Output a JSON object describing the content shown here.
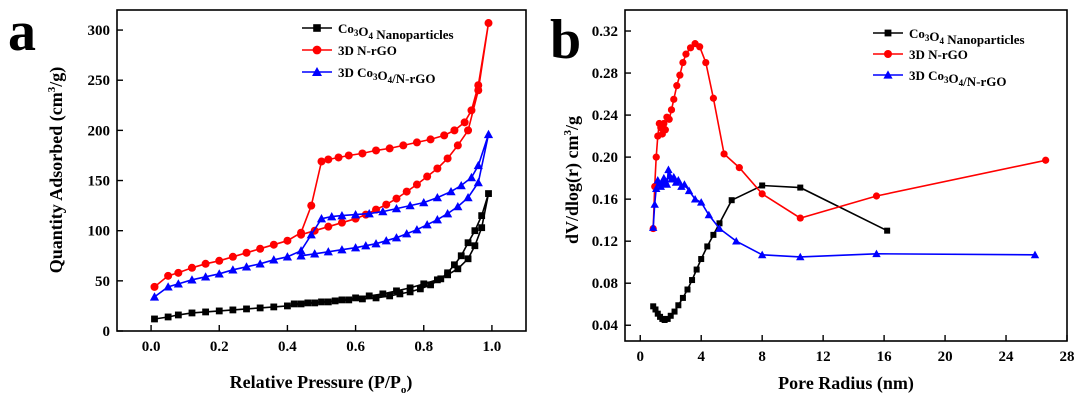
{
  "figure": {
    "panels": [
      "a",
      "b"
    ]
  },
  "chart_data": [
    {
      "panel": "a",
      "type": "line",
      "xlabel": "Relative Pressure (P/P₀)",
      "ylabel": "Quantity Adsorbed (cm³/g)",
      "xlim": [
        -0.1,
        1.1
      ],
      "ylim": [
        0,
        320
      ],
      "xticks": [
        0.0,
        0.2,
        0.4,
        0.6,
        0.8,
        1.0
      ],
      "xtick_labels": [
        "0.0",
        "0.2",
        "0.4",
        "0.6",
        "0.8",
        "1.0"
      ],
      "yticks": [
        0,
        50,
        100,
        150,
        200,
        250,
        300
      ],
      "ytick_labels": [
        "0",
        "50",
        "100",
        "150",
        "200",
        "250",
        "300"
      ],
      "legend_position": "top-right",
      "series": [
        {
          "name": "Co₃O₄ Nanoparticles",
          "color": "#000000",
          "marker": "square",
          "x": [
            0.01,
            0.05,
            0.08,
            0.12,
            0.16,
            0.2,
            0.24,
            0.28,
            0.32,
            0.36,
            0.4,
            0.44,
            0.48,
            0.52,
            0.56,
            0.6,
            0.64,
            0.68,
            0.72,
            0.76,
            0.8,
            0.84,
            0.87,
            0.9,
            0.93,
            0.95,
            0.97,
            0.99,
            0.97,
            0.95,
            0.93,
            0.91,
            0.89,
            0.87,
            0.85,
            0.82,
            0.79,
            0.76,
            0.73,
            0.7,
            0.66,
            0.62,
            0.58,
            0.54,
            0.5,
            0.46,
            0.42
          ],
          "y": [
            12,
            14,
            16,
            18,
            19,
            20,
            21,
            22,
            23,
            24,
            25,
            27,
            28,
            29,
            31,
            33,
            35,
            37,
            40,
            43,
            47,
            51,
            56,
            62,
            72,
            85,
            103,
            137,
            115,
            100,
            88,
            75,
            66,
            58,
            52,
            46,
            42,
            39,
            37,
            35,
            33,
            32,
            31,
            30,
            29,
            28,
            27
          ]
        },
        {
          "name": "3D N-rGO",
          "color": "#ff0000",
          "marker": "circle",
          "x": [
            0.01,
            0.05,
            0.08,
            0.12,
            0.16,
            0.2,
            0.24,
            0.28,
            0.32,
            0.36,
            0.4,
            0.44,
            0.47,
            0.5,
            0.52,
            0.55,
            0.58,
            0.62,
            0.66,
            0.7,
            0.74,
            0.78,
            0.82,
            0.86,
            0.89,
            0.92,
            0.94,
            0.96,
            0.99,
            0.96,
            0.93,
            0.9,
            0.87,
            0.84,
            0.81,
            0.78,
            0.75,
            0.72,
            0.69,
            0.66,
            0.63,
            0.6,
            0.56,
            0.52,
            0.48,
            0.44
          ],
          "y": [
            44,
            55,
            58,
            63,
            67,
            70,
            74,
            78,
            82,
            86,
            90,
            98,
            125,
            169,
            171,
            173,
            175,
            177,
            180,
            182,
            185,
            188,
            191,
            195,
            200,
            208,
            220,
            245,
            307,
            240,
            200,
            185,
            172,
            162,
            154,
            146,
            139,
            132,
            126,
            121,
            116,
            112,
            108,
            104,
            100,
            96
          ]
        },
        {
          "name": "3D Co₃O₄/N-rGO",
          "color": "#0000ff",
          "marker": "triangle",
          "x": [
            0.01,
            0.05,
            0.08,
            0.12,
            0.16,
            0.2,
            0.24,
            0.28,
            0.32,
            0.36,
            0.4,
            0.44,
            0.47,
            0.5,
            0.53,
            0.56,
            0.6,
            0.64,
            0.68,
            0.72,
            0.76,
            0.8,
            0.84,
            0.88,
            0.91,
            0.94,
            0.96,
            0.99,
            0.96,
            0.93,
            0.9,
            0.87,
            0.84,
            0.81,
            0.78,
            0.75,
            0.72,
            0.69,
            0.66,
            0.63,
            0.6,
            0.56,
            0.52,
            0.48,
            0.44
          ],
          "y": [
            34,
            44,
            47,
            51,
            54,
            57,
            61,
            64,
            67,
            71,
            74,
            80,
            96,
            112,
            114,
            115,
            116,
            117,
            119,
            122,
            125,
            128,
            133,
            139,
            145,
            153,
            165,
            196,
            148,
            133,
            124,
            117,
            111,
            106,
            101,
            97,
            93,
            90,
            87,
            85,
            83,
            81,
            79,
            77,
            75
          ]
        }
      ]
    },
    {
      "panel": "b",
      "type": "line",
      "xlabel": "Pore Radius (nm)",
      "ylabel": "dV/dlog(r) cm³/g",
      "xlim": [
        -1,
        28
      ],
      "ylim": [
        0.025,
        0.34
      ],
      "xticks": [
        0,
        4,
        8,
        12,
        16,
        20,
        24,
        28
      ],
      "xtick_labels": [
        "0",
        "4",
        "8",
        "12",
        "16",
        "20",
        "24",
        "28"
      ],
      "yticks": [
        0.04,
        0.08,
        0.12,
        0.16,
        0.2,
        0.24,
        0.28,
        0.32
      ],
      "ytick_labels": [
        "0.04",
        "0.08",
        "0.12",
        "0.16",
        "0.20",
        "0.24",
        "0.28",
        "0.32"
      ],
      "legend_position": "top-right",
      "series": [
        {
          "name": "Co₃O₄ Nanoparticles",
          "color": "#000000",
          "marker": "square",
          "x": [
            0.85,
            1.0,
            1.15,
            1.3,
            1.45,
            1.6,
            1.8,
            2.0,
            2.25,
            2.5,
            2.8,
            3.1,
            3.4,
            3.7,
            4.0,
            4.4,
            4.8,
            5.2,
            6.0,
            8.0,
            10.5,
            16.2
          ],
          "y": [
            0.058,
            0.055,
            0.051,
            0.048,
            0.046,
            0.045,
            0.046,
            0.049,
            0.053,
            0.059,
            0.066,
            0.074,
            0.083,
            0.093,
            0.103,
            0.115,
            0.126,
            0.137,
            0.159,
            0.173,
            0.171,
            0.13
          ]
        },
        {
          "name": "3D N-rGO",
          "color": "#ff0000",
          "marker": "circle",
          "x": [
            0.85,
            0.95,
            1.05,
            1.15,
            1.25,
            1.35,
            1.45,
            1.55,
            1.65,
            1.75,
            1.9,
            2.05,
            2.2,
            2.4,
            2.6,
            2.8,
            3.0,
            3.3,
            3.6,
            3.9,
            4.3,
            4.8,
            5.5,
            6.5,
            8.0,
            10.5,
            15.5,
            26.6
          ],
          "y": [
            0.132,
            0.172,
            0.2,
            0.22,
            0.232,
            0.228,
            0.222,
            0.232,
            0.226,
            0.238,
            0.236,
            0.245,
            0.255,
            0.268,
            0.278,
            0.29,
            0.298,
            0.304,
            0.308,
            0.305,
            0.29,
            0.256,
            0.203,
            0.19,
            0.165,
            0.142,
            0.163,
            0.197
          ]
        },
        {
          "name": "3D Co₃O₄/N-rGO",
          "color": "#0000ff",
          "marker": "triangle",
          "x": [
            0.85,
            0.95,
            1.05,
            1.15,
            1.25,
            1.35,
            1.45,
            1.55,
            1.65,
            1.75,
            1.85,
            1.95,
            2.05,
            2.2,
            2.35,
            2.5,
            2.7,
            2.9,
            3.2,
            3.6,
            4.0,
            4.5,
            5.2,
            6.3,
            8.0,
            10.5,
            15.5,
            25.9
          ],
          "y": [
            0.133,
            0.155,
            0.17,
            0.178,
            0.175,
            0.172,
            0.175,
            0.18,
            0.177,
            0.174,
            0.188,
            0.182,
            0.179,
            0.181,
            0.176,
            0.178,
            0.172,
            0.174,
            0.168,
            0.16,
            0.157,
            0.145,
            0.132,
            0.12,
            0.107,
            0.105,
            0.108,
            0.107
          ]
        }
      ]
    }
  ]
}
